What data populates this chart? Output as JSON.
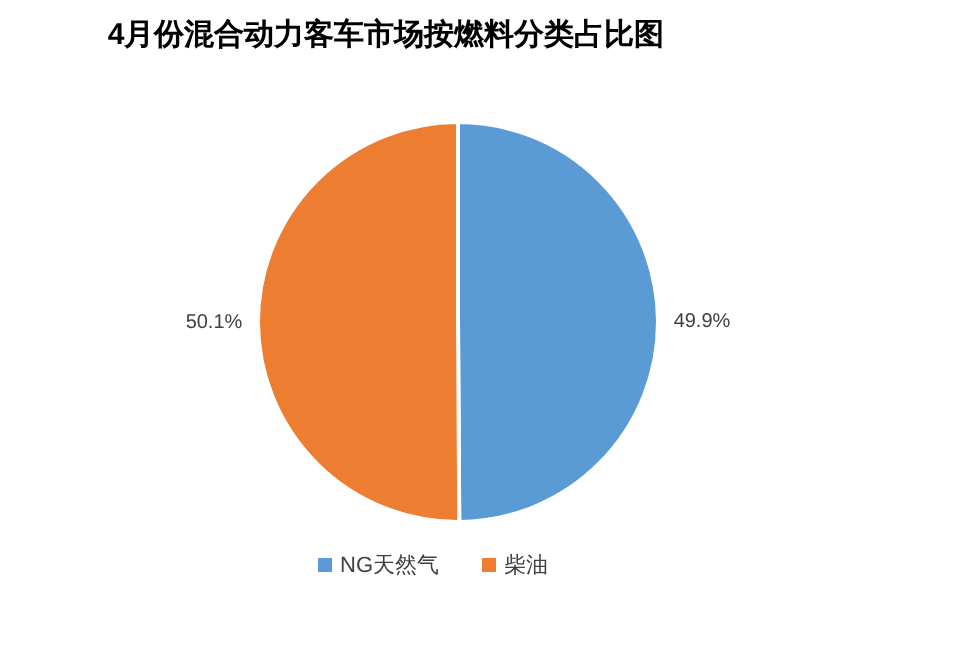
{
  "chart_data": {
    "type": "pie",
    "title": "4月份混合动力客车市场按燃料分类占比图",
    "categories": [
      "NG天然气",
      "柴油"
    ],
    "values": [
      49.9,
      50.1
    ],
    "colors": [
      "#5b9bd5",
      "#ed7d31"
    ],
    "value_labels": [
      "49.9%",
      "50.1%"
    ],
    "legend": "bottom"
  }
}
